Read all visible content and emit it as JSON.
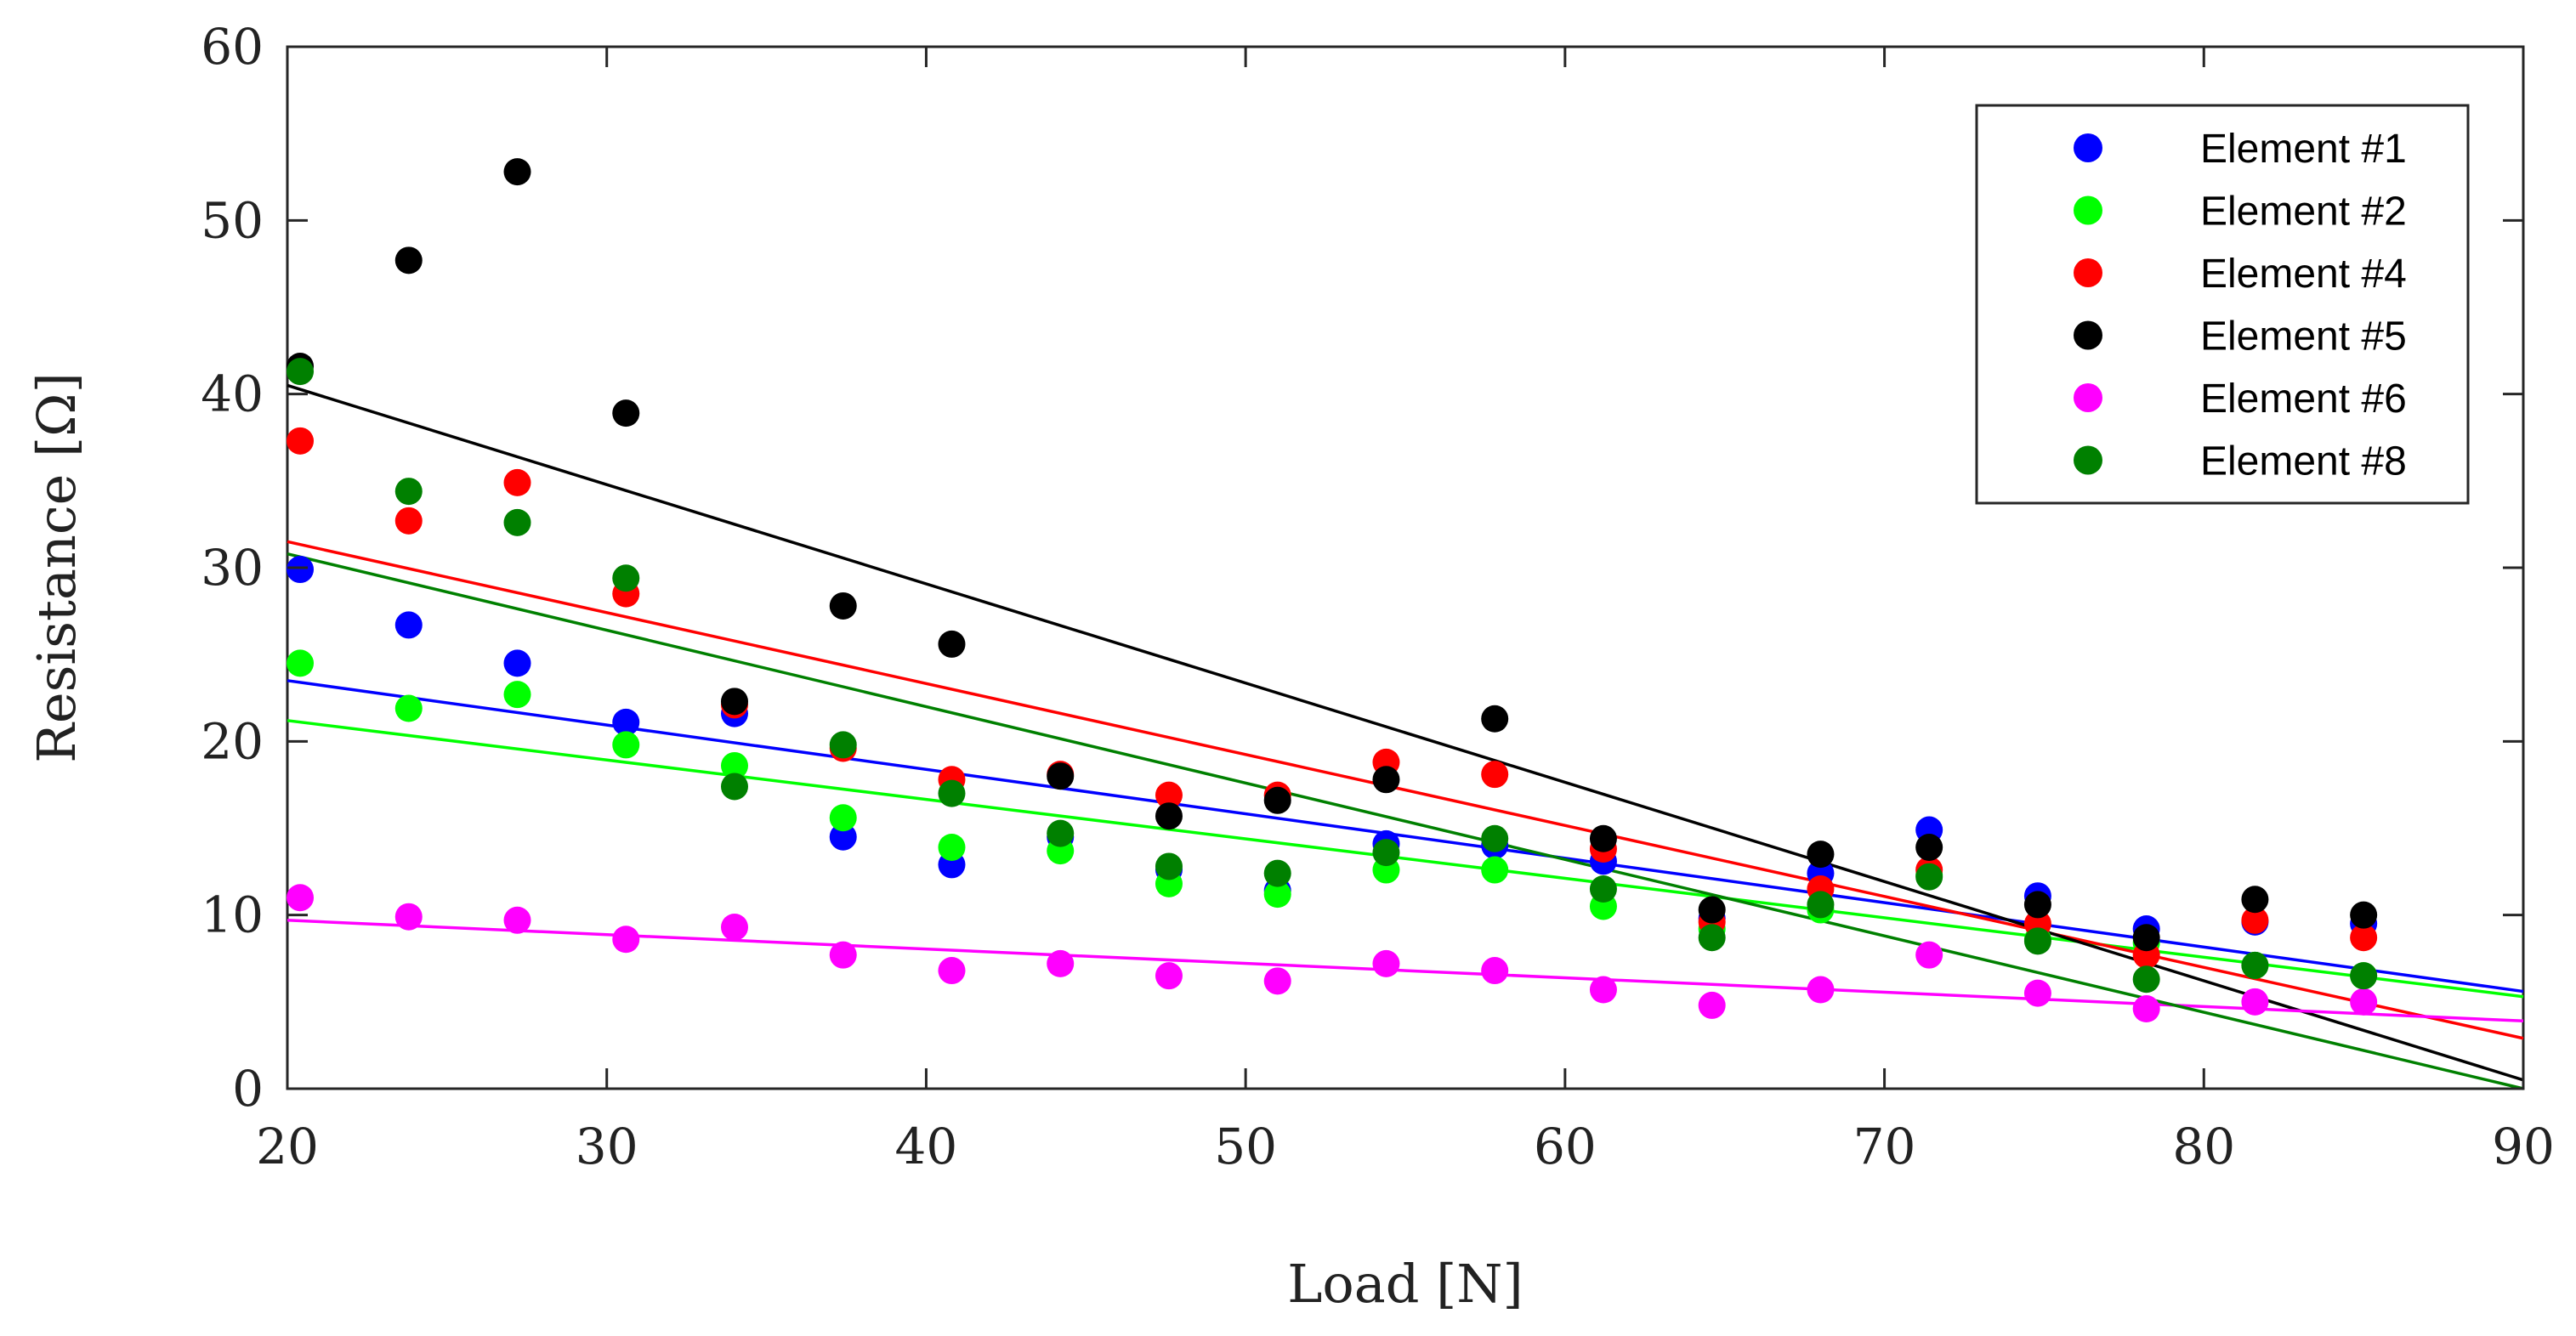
{
  "chart_data": {
    "type": "scatter",
    "title": "",
    "xlabel": "Load [N]",
    "ylabel": "Resistance [Ω]",
    "xlim": [
      20,
      90
    ],
    "ylim": [
      0,
      60
    ],
    "xticks": [
      20,
      30,
      40,
      50,
      60,
      70,
      80,
      90
    ],
    "yticks": [
      0,
      10,
      20,
      30,
      40,
      50,
      60
    ],
    "x": [
      20.4,
      23.8,
      27.2,
      30.6,
      34.0,
      37.4,
      40.8,
      44.2,
      47.6,
      51.0,
      54.4,
      57.8,
      61.2,
      64.6,
      68.0,
      71.4,
      74.8,
      78.2,
      81.6,
      85.0
    ],
    "legend_position": "top-right",
    "series": [
      {
        "name": "Element #1",
        "color": "#0000ff",
        "values": [
          29.9,
          26.7,
          24.5,
          21.1,
          21.6,
          14.5,
          12.9,
          14.5,
          12.6,
          11.4,
          14.1,
          14.0,
          13.1,
          9.8,
          12.4,
          14.9,
          11.1,
          9.2,
          9.6,
          9.5
        ],
        "fit": [
          23.5,
          5.6
        ]
      },
      {
        "name": "Element #2",
        "color": "#00ff00",
        "values": [
          24.5,
          21.9,
          22.7,
          19.8,
          18.6,
          15.6,
          13.9,
          13.7,
          11.8,
          11.2,
          12.6,
          12.6,
          10.5,
          9.2,
          10.3,
          12.3,
          8.6,
          8.4,
          7.1,
          6.5
        ],
        "fit": [
          21.2,
          5.3
        ]
      },
      {
        "name": "Element #4",
        "color": "#ff0000",
        "values": [
          37.3,
          32.7,
          34.9,
          28.5,
          22.1,
          19.6,
          17.8,
          18.1,
          16.9,
          16.9,
          18.8,
          18.1,
          13.8,
          9.6,
          11.5,
          12.6,
          9.5,
          7.7,
          9.7,
          8.7
        ],
        "fit": [
          31.5,
          2.9
        ]
      },
      {
        "name": "Element #5",
        "color": "#000000",
        "values": [
          41.6,
          47.7,
          52.8,
          38.9,
          22.3,
          27.8,
          25.6,
          18.0,
          15.7,
          16.6,
          17.8,
          21.3,
          14.4,
          10.3,
          13.5,
          13.9,
          10.6,
          8.7,
          10.9,
          10.0
        ],
        "fit": [
          40.5,
          0.5
        ]
      },
      {
        "name": "Element #6",
        "color": "#ff00ff",
        "values": [
          11.0,
          9.9,
          9.7,
          8.6,
          9.3,
          7.7,
          6.8,
          7.2,
          6.5,
          6.2,
          7.2,
          6.8,
          5.7,
          4.8,
          5.7,
          7.7,
          5.5,
          4.6,
          5.0,
          5.0
        ],
        "fit": [
          9.7,
          3.9
        ]
      },
      {
        "name": "Element #8",
        "color": "#008000",
        "values": [
          41.3,
          34.4,
          32.6,
          29.4,
          17.4,
          19.8,
          17.0,
          14.7,
          12.8,
          12.4,
          13.6,
          14.4,
          11.5,
          8.7,
          10.6,
          12.2,
          8.5,
          6.3,
          7.1,
          6.5
        ],
        "fit": [
          30.8,
          0.0
        ]
      }
    ]
  }
}
